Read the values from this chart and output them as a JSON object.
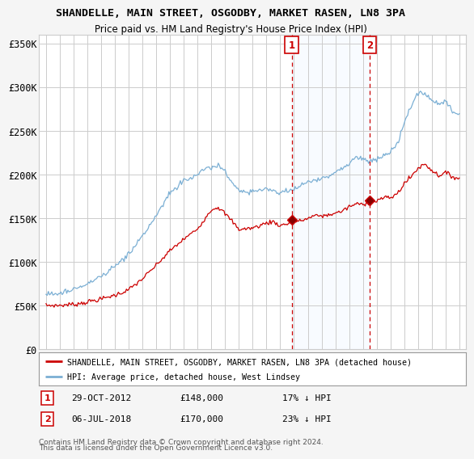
{
  "title": "SHANDELLE, MAIN STREET, OSGODBY, MARKET RASEN, LN8 3PA",
  "subtitle": "Price paid vs. HM Land Registry's House Price Index (HPI)",
  "ylabel_ticks": [
    "£0",
    "£50K",
    "£100K",
    "£150K",
    "£200K",
    "£250K",
    "£300K",
    "£350K"
  ],
  "ytick_values": [
    0,
    50000,
    100000,
    150000,
    200000,
    250000,
    300000,
    350000
  ],
  "ylim": [
    0,
    360000
  ],
  "xlim_min": 1994.5,
  "xlim_max": 2025.5,
  "ann1_x": 2012.83,
  "ann1_y": 148000,
  "ann2_x": 2018.5,
  "ann2_y": 170000,
  "annotation1": {
    "label": "1",
    "date": "29-OCT-2012",
    "price": "£148,000",
    "note": "17% ↓ HPI"
  },
  "annotation2": {
    "label": "2",
    "date": "06-JUL-2018",
    "price": "£170,000",
    "note": "23% ↓ HPI"
  },
  "legend_line1": "SHANDELLE, MAIN STREET, OSGODBY, MARKET RASEN, LN8 3PA (detached house)",
  "legend_line2": "HPI: Average price, detached house, West Lindsey",
  "footer": "Contains HM Land Registry data © Crown copyright and database right 2024.\nThis data is licensed under the Open Government Licence v3.0.",
  "color_price": "#cc0000",
  "color_hpi": "#7bafd4",
  "plot_bg": "#ffffff",
  "grid_color": "#cccccc",
  "shade_color": "#ddeeff",
  "fig_bg": "#f5f5f5"
}
